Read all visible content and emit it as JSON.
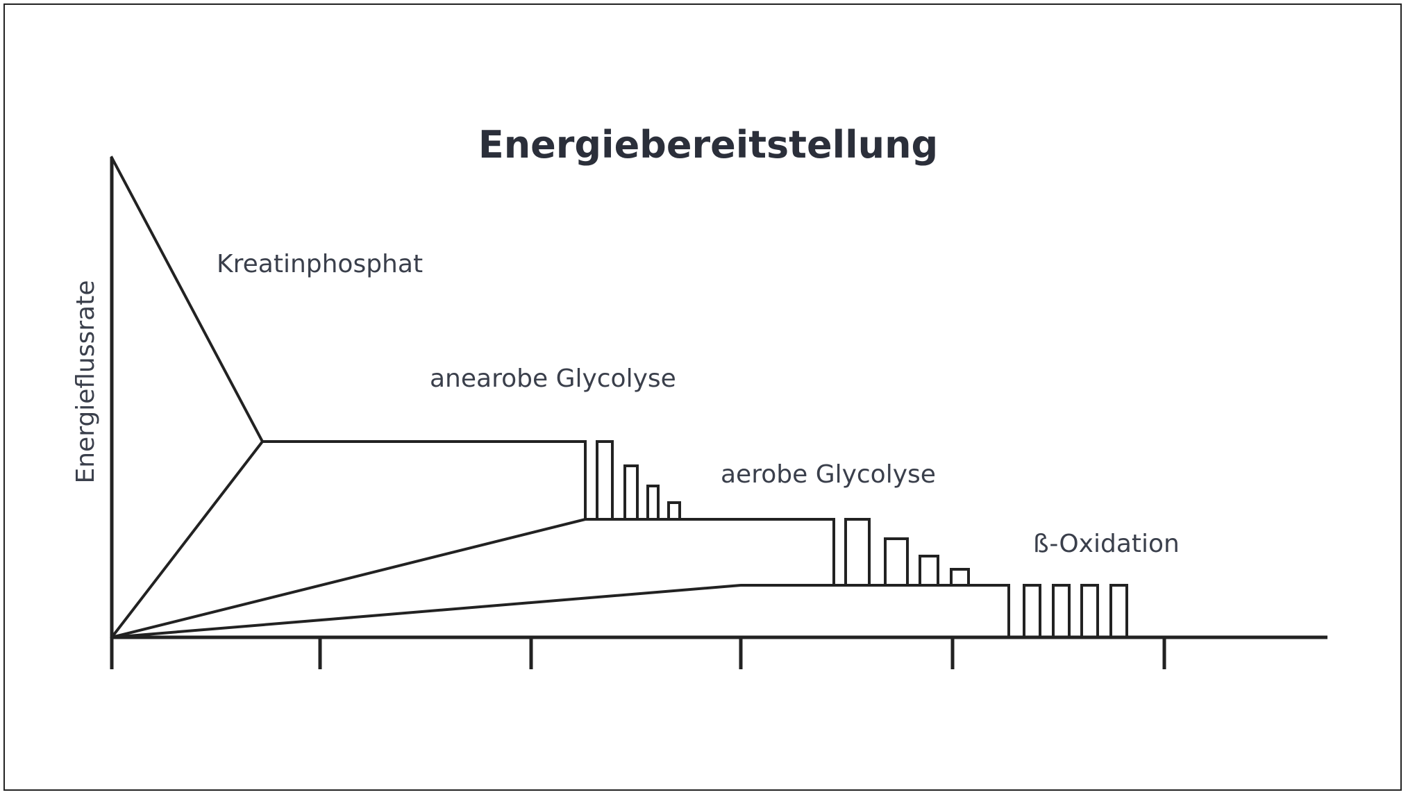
{
  "diagram": {
    "title": "Energiebereitstellung",
    "y_axis_label": "Energieflussrate",
    "systems": [
      {
        "name": "kreatinphosphat",
        "label": "Kreatinphosphat"
      },
      {
        "name": "anaerobe-glycolyse",
        "label": "anearobe Glycolyse"
      },
      {
        "name": "aerobe-glycolyse",
        "label": "aerobe Glycolyse"
      },
      {
        "name": "beta-oxidation",
        "label": "ß-Oxidation"
      }
    ]
  }
}
